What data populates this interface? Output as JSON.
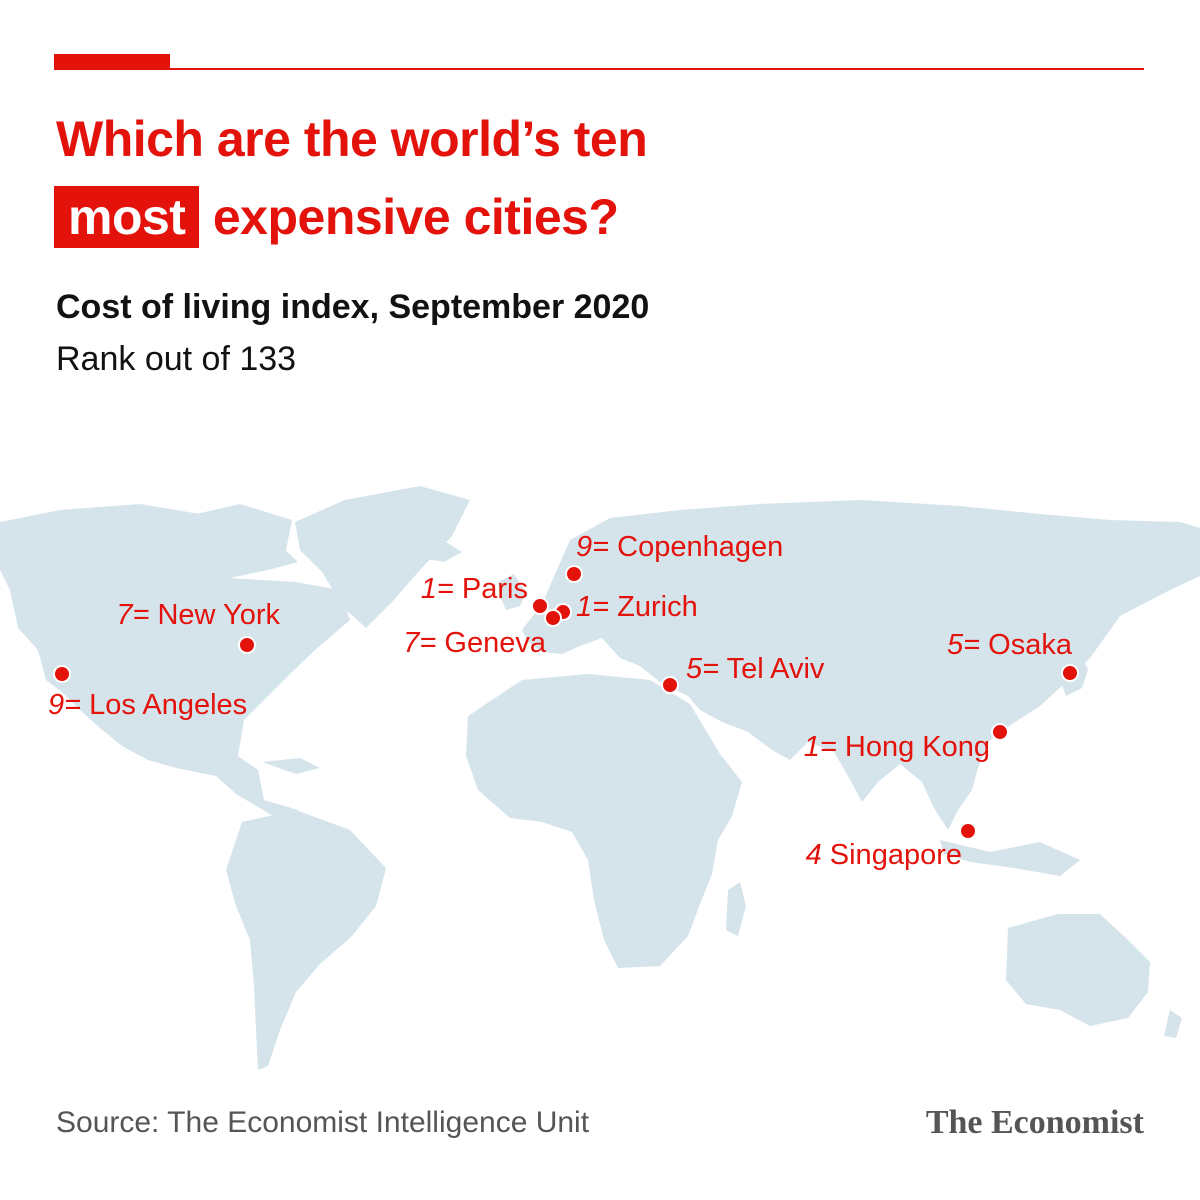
{
  "colors": {
    "accent": "#e3120b",
    "land": "#d5e3eb",
    "text": "#121212",
    "muted": "#555555"
  },
  "headline": {
    "line1": "Which are the world’s ten",
    "highlight": "most",
    "line2_rest": "expensive cities?"
  },
  "subtitle": "Cost of living index, September 2020",
  "subnote": "Rank out of 133",
  "source": "Source: The Economist Intelligence Unit",
  "logo": "The Economist",
  "cities": [
    {
      "rank": "9=",
      "name": "Copenhagen"
    },
    {
      "rank": "1=",
      "name": "Paris"
    },
    {
      "rank": "1=",
      "name": "Zurich"
    },
    {
      "rank": "7=",
      "name": "Geneva"
    },
    {
      "rank": "7=",
      "name": "New York"
    },
    {
      "rank": "9=",
      "name": "Los Angeles"
    },
    {
      "rank": "5=",
      "name": "Tel Aviv"
    },
    {
      "rank": "5=",
      "name": "Osaka"
    },
    {
      "rank": "1=",
      "name": "Hong Kong"
    },
    {
      "rank": "4",
      "name": "Singapore"
    }
  ]
}
